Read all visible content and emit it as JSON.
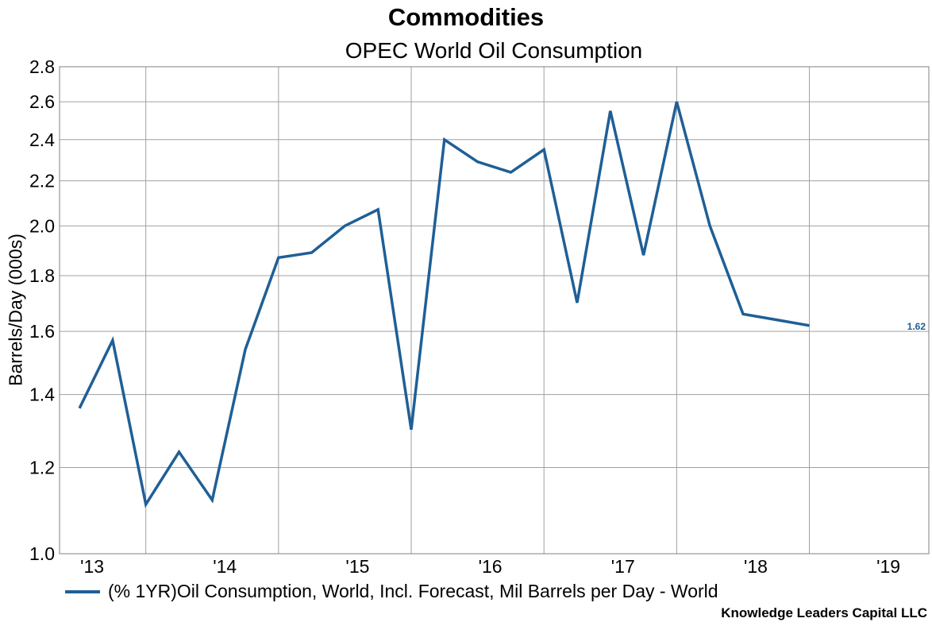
{
  "chart_data": {
    "type": "line",
    "title": "Commodities",
    "subtitle": "OPEC World Oil Consumption",
    "ylabel": "Barrels/Day (000s)",
    "xlabel": "",
    "y_scale": "log",
    "ylim": [
      1.0,
      2.8
    ],
    "y_ticks": [
      "1.0",
      "1.2",
      "1.4",
      "1.6",
      "1.8",
      "2.0",
      "2.2",
      "2.4",
      "2.6",
      "2.8"
    ],
    "x_ticks": [
      "'13",
      "'14",
      "'15",
      "'16",
      "'17",
      "'18",
      "'19"
    ],
    "x_range": [
      2012.85,
      2019.4
    ],
    "grid": true,
    "legend_position": "bottom",
    "series": [
      {
        "name": "(% 1YR)Oil Consumption, World, Incl. Forecast, Mil Barrels per Day - World",
        "color": "#1f5f96",
        "last_value_label": "1.62",
        "x": [
          2013.0,
          2013.25,
          2013.5,
          2013.75,
          2014.0,
          2014.25,
          2014.5,
          2014.75,
          2015.0,
          2015.25,
          2015.5,
          2015.75,
          2016.0,
          2016.25,
          2016.5,
          2016.75,
          2017.0,
          2017.25,
          2017.5,
          2017.75,
          2018.0,
          2018.25,
          2018.5
        ],
        "values": [
          1.36,
          1.57,
          1.11,
          1.24,
          1.12,
          1.54,
          1.87,
          1.89,
          2.0,
          2.07,
          1.3,
          2.4,
          2.29,
          2.24,
          2.35,
          1.7,
          2.55,
          1.88,
          2.6,
          2.0,
          1.66,
          1.64,
          1.62
        ]
      }
    ]
  },
  "credit": "Knowledge Leaders Capital LLC"
}
